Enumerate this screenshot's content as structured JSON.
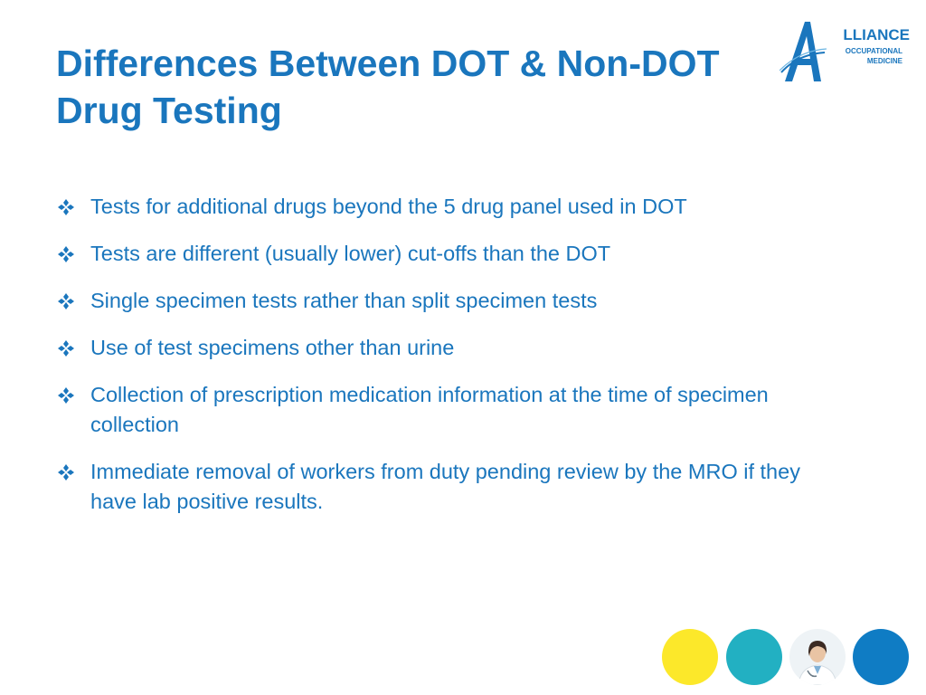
{
  "slide": {
    "title_lines": [
      "Differences Between DOT & Non-DOT",
      "Drug Testing"
    ],
    "logo": {
      "word": "LLIANCE",
      "sub1": "OCCUPATIONAL",
      "sub2": "MEDICINE",
      "color": "#1a76bd"
    },
    "bullet_icon": "diamond-quad-icon",
    "bullets": [
      "Tests for additional drugs beyond the 5 drug panel used in DOT",
      "Tests are different (usually lower) cut-offs than the DOT",
      "Single specimen tests rather than split specimen tests",
      "Use of test specimens other than urine",
      "Collection of prescription medication information at the time of specimen collection",
      "Immediate removal of workers from duty pending review by the MRO if they have lab positive results."
    ],
    "footer_circles": [
      {
        "name": "yellow-circle",
        "color": "#fce82a"
      },
      {
        "name": "teal-circle",
        "color": "#22b0c2"
      },
      {
        "name": "doctor-photo-circle",
        "color": "#ffffff"
      },
      {
        "name": "blue-circle",
        "color": "#0f7cc4"
      }
    ],
    "text_color": "#1a76bd"
  }
}
